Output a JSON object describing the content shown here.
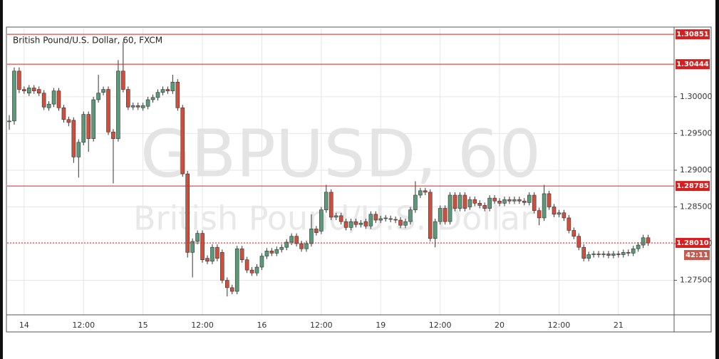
{
  "chart_data": {
    "type": "candlestick",
    "title": "British Pound/U.S. Dollar, 60, FXCM",
    "watermark": "GBPUSD, 60",
    "watermark_sub": "British Pound/U.S. Dollar",
    "categories": [
      null,
      null,
      null,
      "14",
      null,
      null,
      null,
      null,
      null,
      null,
      null,
      null,
      null,
      null,
      null,
      "12:00",
      null,
      null,
      null,
      null,
      null,
      null,
      null,
      null,
      null,
      null,
      null,
      "15",
      null,
      null,
      null,
      null,
      null,
      null,
      null,
      null,
      null,
      null,
      null,
      "12:00",
      null,
      null,
      null,
      null,
      null,
      null,
      null,
      null,
      null,
      null,
      null,
      "16",
      null,
      null,
      null,
      null,
      null,
      null,
      null,
      null,
      null,
      null,
      null,
      "12:00",
      null,
      null,
      null,
      null,
      null,
      null,
      null,
      null,
      null,
      null,
      null,
      "19",
      null,
      null,
      null,
      null,
      null,
      null,
      null,
      null,
      null,
      null,
      null,
      "12:00",
      null,
      null,
      null,
      null,
      null,
      null,
      null,
      null,
      null,
      null,
      null,
      "20",
      null,
      null,
      null,
      null,
      null,
      null,
      null,
      null,
      null,
      null,
      null,
      "12:00",
      null,
      null,
      null,
      null,
      null,
      null,
      null,
      null,
      null,
      null,
      null,
      "21",
      null,
      null,
      null,
      null,
      null,
      null
    ],
    "open": [
      1.2966,
      1.2967,
      1.3035,
      1.301,
      1.3005,
      1.3012,
      1.301,
      1.3005,
      1.2985,
      1.299,
      1.3008,
      1.2985,
      1.2969,
      1.2968,
      1.2918,
      1.2938,
      1.2976,
      1.2943,
      1.2996,
      1.3006,
      1.301,
      1.2952,
      1.2943,
      1.3035,
      1.301,
      1.2986,
      1.2988,
      1.2985,
      1.2987,
      1.2996,
      1.2999,
      1.3006,
      1.301,
      1.3008,
      1.302,
      1.2985,
      1.2895,
      1.2788,
      1.2803,
      1.2814,
      1.278,
      1.2776,
      1.2795,
      1.2788,
      1.275,
      1.274,
      1.2735,
      1.2793,
      1.2778,
      1.2764,
      1.276,
      1.2768,
      1.2783,
      1.279,
      1.2787,
      1.2792,
      1.2795,
      1.2802,
      1.281,
      1.28,
      1.2793,
      1.28,
      1.282,
      1.2817,
      1.2846,
      1.287,
      1.2836,
      1.2838,
      1.283,
      1.2822,
      1.283,
      1.2826,
      1.283,
      1.2824,
      1.284,
      1.2832,
      1.2834,
      1.2834,
      1.2833,
      1.2832,
      1.2825,
      1.283,
      1.2846,
      1.2866,
      1.2872,
      1.287,
      1.2807,
      1.283,
      1.2848,
      1.283,
      1.2866,
      1.2848,
      1.2866,
      1.285,
      1.286,
      1.2855,
      1.2852,
      1.2848,
      1.2862,
      1.2858,
      1.2855,
      1.286,
      1.2858,
      1.286,
      1.2858,
      1.2856,
      1.2866,
      1.2845,
      1.2835,
      1.2868,
      1.285,
      1.284,
      1.2842,
      1.2835,
      1.2818,
      1.281,
      1.2795,
      1.278,
      1.2785,
      1.2786,
      1.2785,
      1.2786,
      1.2784,
      1.2786,
      1.2785,
      1.2788,
      1.2787,
      1.2793,
      1.2798,
      1.2808
    ],
    "high": [
      1.2975,
      1.304,
      1.304,
      1.3014,
      1.3016,
      1.3016,
      1.3014,
      1.3009,
      1.2994,
      1.3012,
      1.3012,
      1.2989,
      1.2973,
      1.2972,
      1.2942,
      1.298,
      1.298,
      1.3,
      1.303,
      1.3014,
      1.3014,
      1.2956,
      1.305,
      1.3075,
      1.3014,
      1.2992,
      1.2992,
      1.2992,
      1.3,
      1.3003,
      1.301,
      1.3014,
      1.3014,
      1.303,
      1.3024,
      1.2989,
      1.2899,
      1.2807,
      1.2818,
      1.2818,
      1.2784,
      1.2799,
      1.2799,
      1.2792,
      1.2754,
      1.2744,
      1.2797,
      1.2797,
      1.2782,
      1.2768,
      1.2772,
      1.2787,
      1.2794,
      1.2794,
      1.2796,
      1.2799,
      1.2806,
      1.2814,
      1.2814,
      1.2804,
      1.2804,
      1.284,
      1.2824,
      1.285,
      1.288,
      1.2874,
      1.2842,
      1.2842,
      1.2834,
      1.2834,
      1.2834,
      1.2832,
      1.2834,
      1.2844,
      1.2844,
      1.2838,
      1.2839,
      1.2838,
      1.2837,
      1.2836,
      1.2834,
      1.285,
      1.2885,
      1.2876,
      1.2876,
      1.2874,
      1.2834,
      1.2852,
      1.2852,
      1.287,
      1.287,
      1.287,
      1.287,
      1.2864,
      1.2864,
      1.2859,
      1.2856,
      1.2866,
      1.2866,
      1.2862,
      1.2864,
      1.2864,
      1.2864,
      1.2864,
      1.2862,
      1.287,
      1.287,
      1.2849,
      1.288,
      1.2872,
      1.2854,
      1.2846,
      1.2846,
      1.2839,
      1.2822,
      1.2814,
      1.2799,
      1.2789,
      1.279,
      1.279,
      1.279,
      1.279,
      1.279,
      1.279,
      1.2792,
      1.2792,
      1.2797,
      1.2802,
      1.2812,
      1.2812
    ],
    "low": [
      1.2955,
      1.2962,
      1.3005,
      1.3004,
      1.3001,
      1.3004,
      1.3001,
      1.2982,
      1.2981,
      1.2986,
      1.2981,
      1.2965,
      1.296,
      1.291,
      1.289,
      1.2934,
      1.2925,
      1.2939,
      1.2992,
      1.3002,
      1.2948,
      1.2882,
      1.2939,
      1.3006,
      1.2982,
      1.2982,
      1.2982,
      1.2981,
      1.2983,
      1.2992,
      1.2995,
      1.3002,
      1.3004,
      1.3004,
      1.2981,
      1.2891,
      1.2781,
      1.2754,
      1.2799,
      1.2774,
      1.2772,
      1.2772,
      1.2776,
      1.2746,
      1.2728,
      1.2731,
      1.2731,
      1.2774,
      1.276,
      1.2756,
      1.2756,
      1.2764,
      1.2779,
      1.2783,
      1.2783,
      1.2788,
      1.2791,
      1.2798,
      1.2796,
      1.2789,
      1.2789,
      1.2796,
      1.2811,
      1.2813,
      1.2842,
      1.2832,
      1.2832,
      1.2826,
      1.2818,
      1.2818,
      1.2822,
      1.2822,
      1.282,
      1.282,
      1.2828,
      1.2828,
      1.283,
      1.2829,
      1.2828,
      1.2821,
      1.2821,
      1.2826,
      1.2842,
      1.2862,
      1.2866,
      1.2803,
      1.2795,
      1.2826,
      1.2826,
      1.2826,
      1.2844,
      1.2844,
      1.2844,
      1.2846,
      1.2851,
      1.2848,
      1.2844,
      1.2844,
      1.2854,
      1.2851,
      1.2851,
      1.2854,
      1.2854,
      1.2854,
      1.2852,
      1.2852,
      1.2841,
      1.2825,
      1.2831,
      1.2846,
      1.2836,
      1.2836,
      1.2831,
      1.2814,
      1.2806,
      1.2791,
      1.2776,
      1.2776,
      1.2781,
      1.2781,
      1.2781,
      1.278,
      1.278,
      1.2781,
      1.2781,
      1.2783,
      1.2783,
      1.2789,
      1.2794,
      1.2797
    ],
    "close": [
      1.2967,
      1.3035,
      1.301,
      1.3008,
      1.3012,
      1.3008,
      1.3005,
      1.2986,
      1.299,
      1.3008,
      1.2985,
      1.2969,
      1.2965,
      1.2918,
      1.2938,
      1.2976,
      1.2943,
      1.2996,
      1.3005,
      1.301,
      1.2952,
      1.2943,
      1.3035,
      1.301,
      1.2986,
      1.2988,
      1.2986,
      1.2988,
      1.2996,
      1.2999,
      1.3006,
      1.301,
      1.3008,
      1.302,
      1.2985,
      1.2895,
      1.2788,
      1.2803,
      1.2814,
      1.2778,
      1.2776,
      1.2795,
      1.278,
      1.275,
      1.274,
      1.2735,
      1.2793,
      1.2778,
      1.2764,
      1.276,
      1.2768,
      1.2783,
      1.279,
      1.2787,
      1.2792,
      1.2795,
      1.2802,
      1.281,
      1.28,
      1.2793,
      1.28,
      1.282,
      1.2815,
      1.2846,
      1.287,
      1.2836,
      1.2838,
      1.283,
      1.2822,
      1.283,
      1.2826,
      1.2828,
      1.2824,
      1.284,
      1.2832,
      1.2834,
      1.2835,
      1.2833,
      1.2832,
      1.2825,
      1.283,
      1.2846,
      1.2866,
      1.2872,
      1.287,
      1.2807,
      1.283,
      1.2848,
      1.283,
      1.2866,
      1.2848,
      1.2866,
      1.2848,
      1.286,
      1.2855,
      1.2852,
      1.2848,
      1.2862,
      1.2858,
      1.2855,
      1.286,
      1.2858,
      1.286,
      1.2858,
      1.2856,
      1.2866,
      1.2845,
      1.2835,
      1.2868,
      1.285,
      1.284,
      1.2842,
      1.2835,
      1.2818,
      1.281,
      1.2795,
      1.278,
      1.2785,
      1.2786,
      1.2785,
      1.2786,
      1.2784,
      1.2786,
      1.2785,
      1.2788,
      1.2787,
      1.2793,
      1.2798,
      1.2808,
      1.2801
    ],
    "up_color": "#5a9a78",
    "down_color": "#cf4f3c",
    "level_color": "#d62020",
    "levels": [
      1.30851,
      1.30444,
      1.28785
    ],
    "last_price": {
      "value": 1.2801,
      "label": "1.28010"
    },
    "countdown": "42:11",
    "ylim": [
      1.2703,
      1.3093
    ],
    "yticks": [
      {
        "value": 1.275,
        "label": "1.27500"
      },
      {
        "value": 1.28,
        "label": "1.28000"
      },
      {
        "value": 1.285,
        "label": "1.28500"
      },
      {
        "value": 1.29,
        "label": "1.29000"
      },
      {
        "value": 1.295,
        "label": "1.29500"
      },
      {
        "value": 1.3,
        "label": "1.30000"
      }
    ],
    "grid": true
  }
}
